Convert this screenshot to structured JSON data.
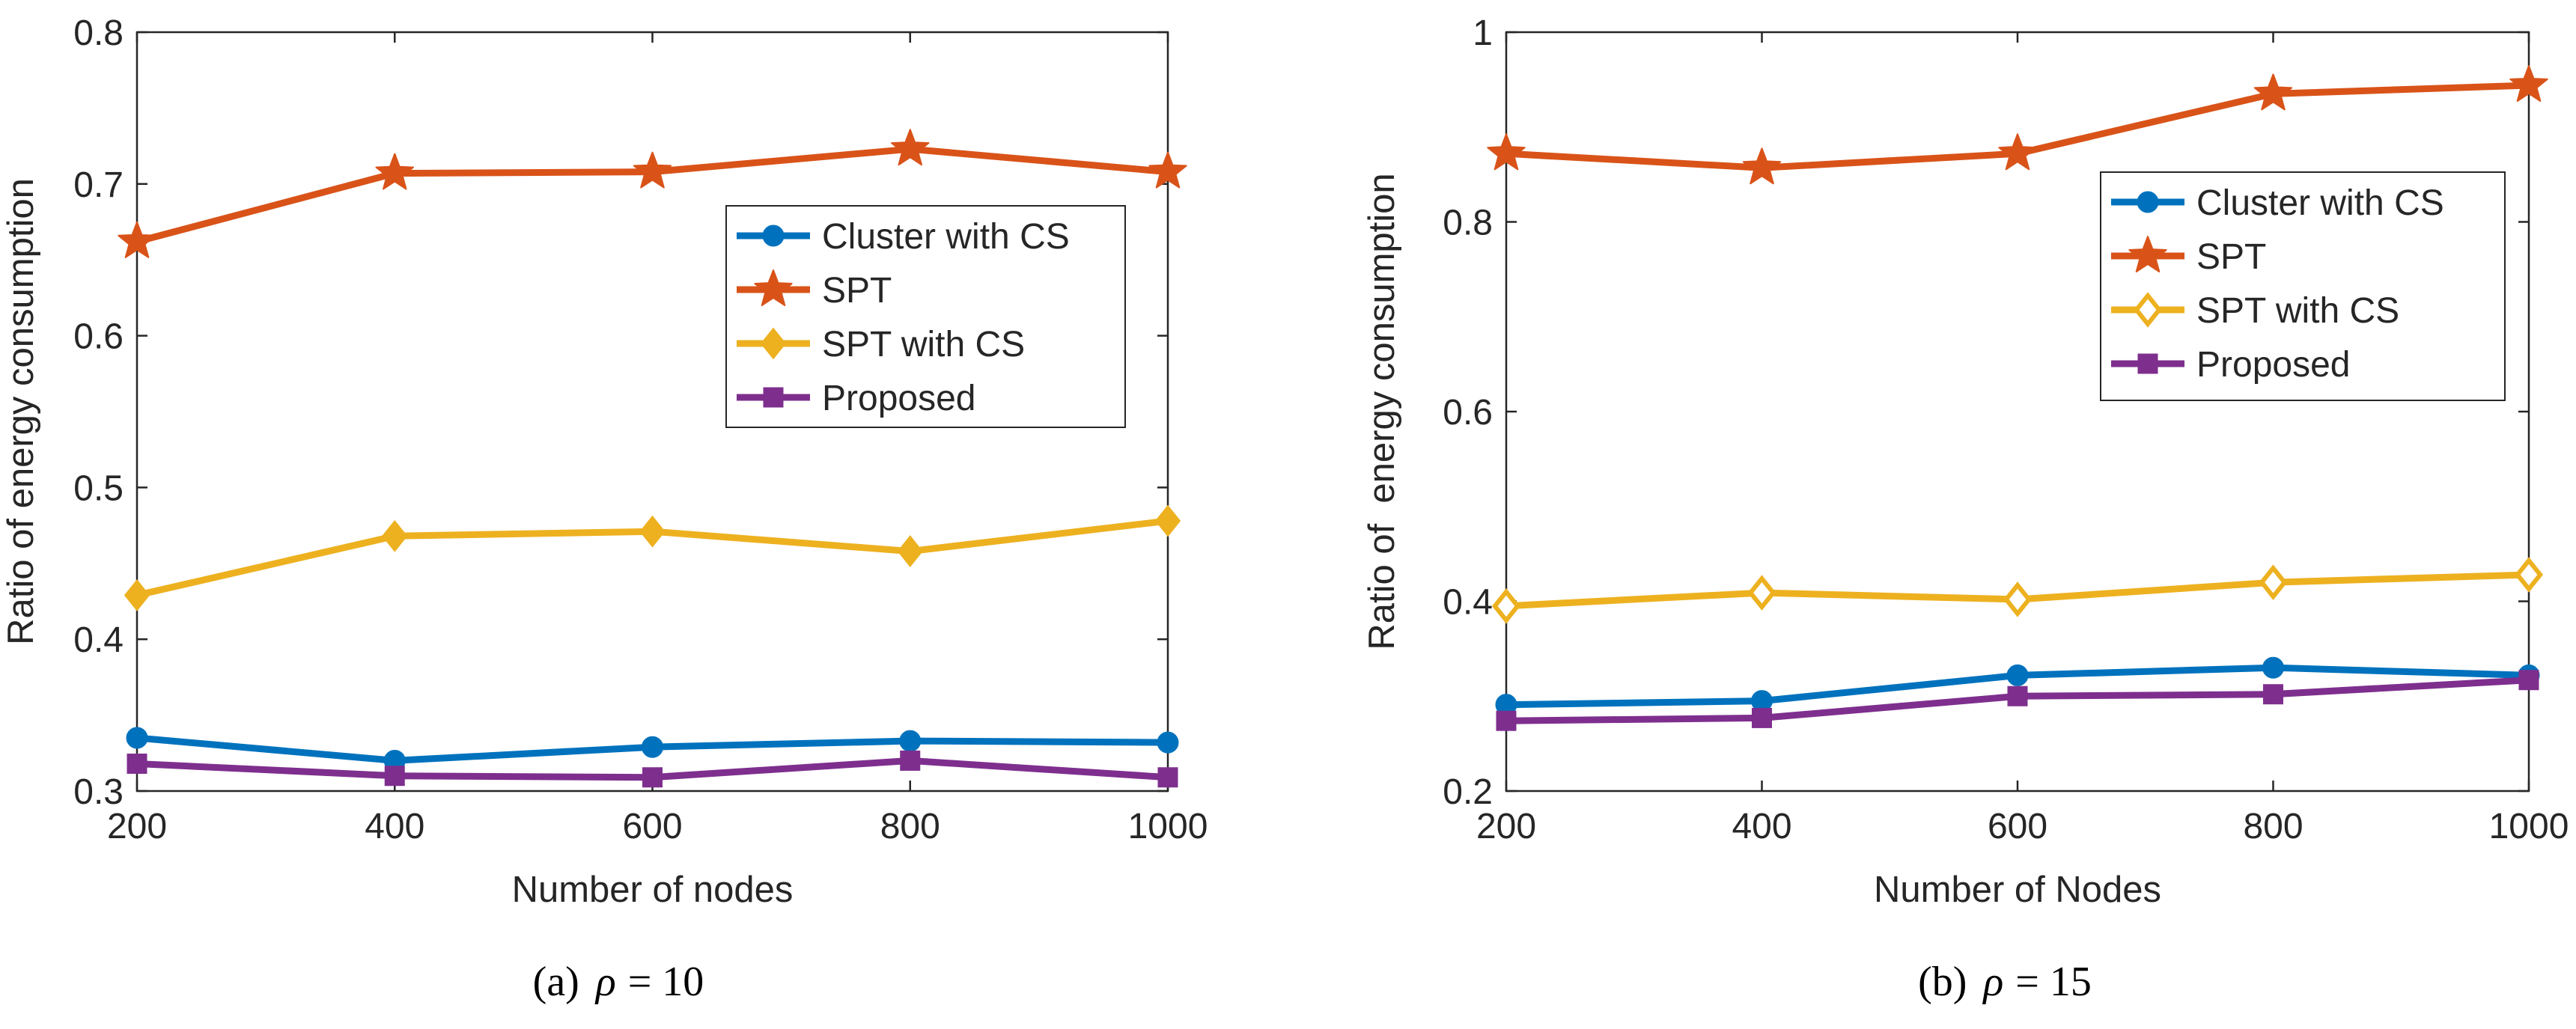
{
  "chart_data": [
    {
      "type": "line",
      "caption_prefix": "(a)",
      "caption_symbol": "ρ",
      "caption_eq": "= 10",
      "xlabel": "Number of nodes",
      "ylabel": "Ratio of energy consumption",
      "xlim": [
        200,
        1000
      ],
      "ylim": [
        0.3,
        0.8
      ],
      "xticks": [
        200,
        400,
        600,
        800,
        1000
      ],
      "xtick_labels": [
        "200",
        "400",
        "600",
        "800",
        "1000"
      ],
      "yticks": [
        0.3,
        0.4,
        0.5,
        0.6,
        0.7,
        0.8
      ],
      "ytick_labels": [
        "0.3",
        "0.4",
        "0.5",
        "0.6",
        "0.7",
        "0.8"
      ],
      "x": [
        200,
        400,
        600,
        800,
        1000
      ],
      "legend_position": "top-right",
      "series": [
        {
          "name": "Cluster with CS",
          "color": "#0072BD",
          "marker": "circle",
          "values": [
            0.335,
            0.32,
            0.329,
            0.333,
            0.332
          ]
        },
        {
          "name": "SPT",
          "color": "#D95319",
          "marker": "star",
          "values": [
            0.662,
            0.707,
            0.708,
            0.723,
            0.708
          ]
        },
        {
          "name": "SPT with CS",
          "color": "#EDB120",
          "marker": "diamond",
          "values": [
            0.429,
            0.468,
            0.471,
            0.458,
            0.478
          ]
        },
        {
          "name": "Proposed",
          "color": "#7E2F8E",
          "marker": "square",
          "values": [
            0.318,
            0.31,
            0.309,
            0.32,
            0.309
          ]
        }
      ]
    },
    {
      "type": "line",
      "caption_prefix": "(b)",
      "caption_symbol": "ρ",
      "caption_eq": "= 15",
      "xlabel": "Number of Nodes",
      "ylabel": "Ratio of  energy consumption",
      "xlim": [
        200,
        1000
      ],
      "ylim": [
        0.2,
        1.0
      ],
      "xticks": [
        200,
        400,
        600,
        800,
        1000
      ],
      "xtick_labels": [
        "200",
        "400",
        "600",
        "800",
        "1000"
      ],
      "yticks": [
        0.2,
        0.4,
        0.6,
        0.8,
        1.0
      ],
      "ytick_labels": [
        "0.2",
        "0.4",
        "0.6",
        "0.8",
        "1"
      ],
      "x": [
        200,
        400,
        600,
        800,
        1000
      ],
      "legend_position": "top-right",
      "series": [
        {
          "name": "Cluster with CS",
          "color": "#0072BD",
          "marker": "circle",
          "values": [
            0.291,
            0.295,
            0.322,
            0.33,
            0.322
          ]
        },
        {
          "name": "SPT",
          "color": "#D95319",
          "marker": "star",
          "values": [
            0.872,
            0.857,
            0.872,
            0.935,
            0.944
          ]
        },
        {
          "name": "SPT with CS",
          "color": "#EDB120",
          "marker": "diamond-open",
          "values": [
            0.395,
            0.409,
            0.402,
            0.42,
            0.428
          ]
        },
        {
          "name": "Proposed",
          "color": "#7E2F8E",
          "marker": "square",
          "values": [
            0.274,
            0.277,
            0.3,
            0.302,
            0.317
          ]
        }
      ]
    }
  ]
}
